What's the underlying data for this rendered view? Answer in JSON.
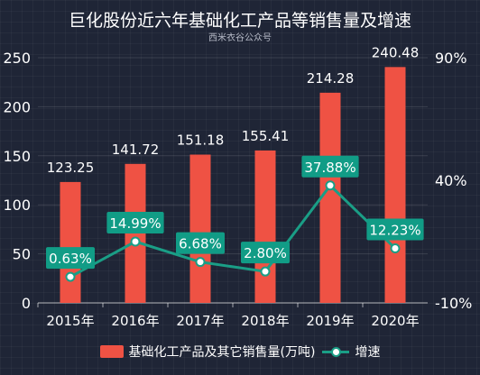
{
  "title": "巨化股份近六年基础化工产品等销售量及增速",
  "subtitle": "西米衣谷公众号",
  "colors": {
    "bar": "#ef5244",
    "line": "#1a9e86",
    "label_box": "#119c86",
    "background": "#1f2536"
  },
  "chart_data": {
    "type": "bar",
    "categories": [
      "2015年",
      "2016年",
      "2017年",
      "2018年",
      "2019年",
      "2020年"
    ],
    "series": [
      {
        "name": "基础化工产品及其它销售量(万吨)",
        "type": "bar",
        "axis": "left",
        "values": [
          123.25,
          141.72,
          151.18,
          155.41,
          214.28,
          240.48
        ],
        "labels": [
          "123.25",
          "141.72",
          "151.18",
          "155.41",
          "214.28",
          "240.48"
        ]
      },
      {
        "name": "增速",
        "type": "line",
        "axis": "right",
        "values": [
          0.63,
          14.99,
          6.68,
          2.8,
          37.88,
          12.23
        ],
        "labels": [
          "0.63%",
          "14.99%",
          "6.68%",
          "2.80%",
          "37.88%",
          "12.23%"
        ]
      }
    ],
    "y_left": {
      "ylim": [
        0,
        250
      ],
      "ticks": [
        "0",
        "50",
        "100",
        "150",
        "200",
        "250"
      ]
    },
    "y_right": {
      "ylim": [
        -10,
        90
      ],
      "ticks": [
        "-10%",
        "40%",
        "90%"
      ]
    },
    "grid": true,
    "legend": "bottom"
  }
}
